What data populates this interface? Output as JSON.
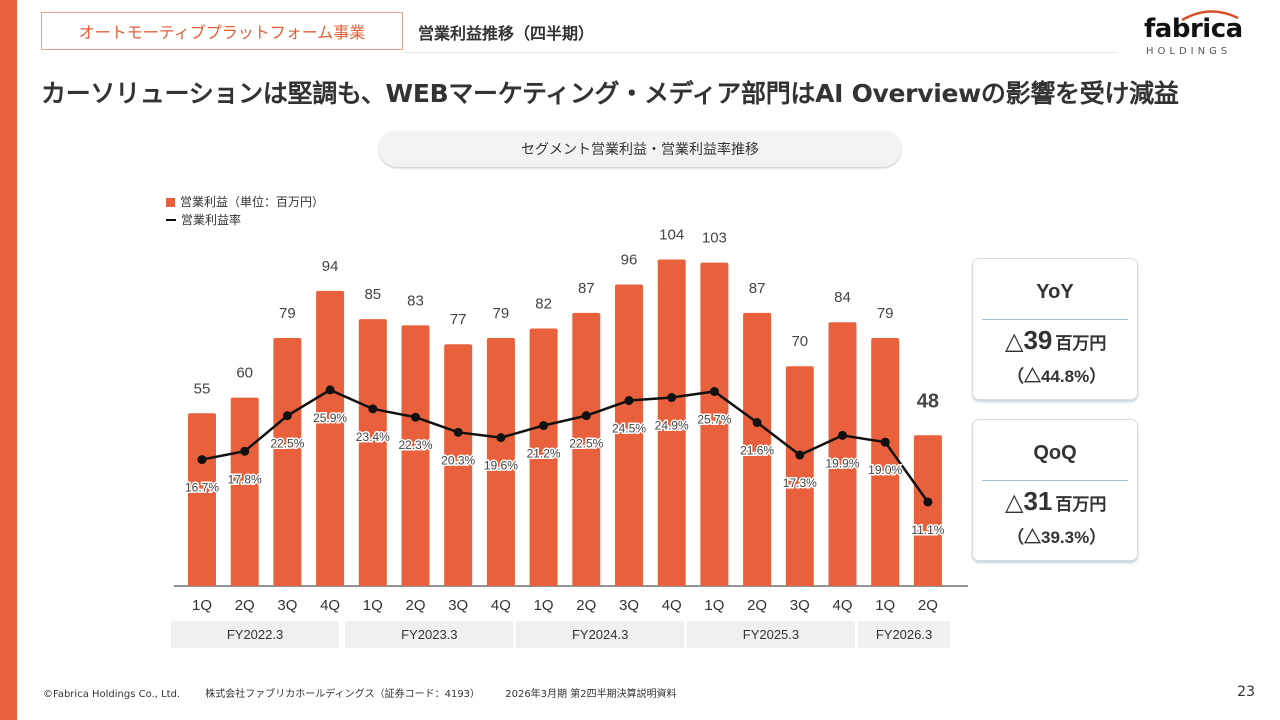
{
  "header": {
    "section_tag": "オートモーティブプラットフォーム事業",
    "subtitle": "営業利益推移（四半期）",
    "logo_word": "fabrica",
    "logo_sub": "HOLDINGS",
    "headline": "カーソリューションは堅調も、WEBマーケティング・メディア部門はAI Overviewの影響を受け減益"
  },
  "chart_title_pill": "セグメント営業利益・営業利益率推移",
  "legend": {
    "bar_label": "営業利益（単位：百万円）",
    "line_label": "営業利益率"
  },
  "colors": {
    "accent": "#e8613c",
    "line": "#111111",
    "band": "#f0f0f0"
  },
  "chart_data": {
    "type": "bar",
    "title": "セグメント営業利益・営業利益率推移",
    "xlabel": "",
    "ylabel": "営業利益（百万円）",
    "categories": [
      "1Q",
      "2Q",
      "3Q",
      "4Q",
      "1Q",
      "2Q",
      "3Q",
      "4Q",
      "1Q",
      "2Q",
      "3Q",
      "4Q",
      "1Q",
      "2Q",
      "3Q",
      "4Q",
      "1Q",
      "2Q"
    ],
    "groups": [
      {
        "label": "FY2022.3",
        "count": 4
      },
      {
        "label": "FY2023.3",
        "count": 4
      },
      {
        "label": "FY2024.3",
        "count": 4
      },
      {
        "label": "FY2025.3",
        "count": 4
      },
      {
        "label": "FY2026.3",
        "count": 2
      }
    ],
    "series": [
      {
        "name": "営業利益（単位：百万円）",
        "type": "bar",
        "values": [
          55,
          60,
          79,
          94,
          85,
          83,
          77,
          79,
          82,
          87,
          96,
          104,
          103,
          87,
          70,
          84,
          79,
          48
        ]
      },
      {
        "name": "営業利益率",
        "type": "line",
        "unit": "%",
        "values": [
          16.7,
          17.8,
          22.5,
          25.9,
          23.4,
          22.3,
          20.3,
          19.6,
          21.2,
          22.5,
          24.5,
          24.9,
          25.7,
          21.6,
          17.3,
          19.9,
          19.0,
          11.1
        ]
      }
    ],
    "highlight_last_label": true,
    "legend_position": "top-left",
    "grid": false
  },
  "kpis": [
    {
      "title": "YoY",
      "triangle": "△",
      "value": "39",
      "unit": "百万円",
      "pct": "（△44.8%）"
    },
    {
      "title": "QoQ",
      "triangle": "△",
      "value": "31",
      "unit": "百万円",
      "pct": "（△39.3%）"
    }
  ],
  "footer": {
    "copyright": "©Fabrica Holdings Co., Ltd.",
    "company": "株式会社ファブリカホールディングス（証券コード：4193）",
    "doc": "2026年3月期 第2四半期決算説明資料",
    "page": "23"
  }
}
